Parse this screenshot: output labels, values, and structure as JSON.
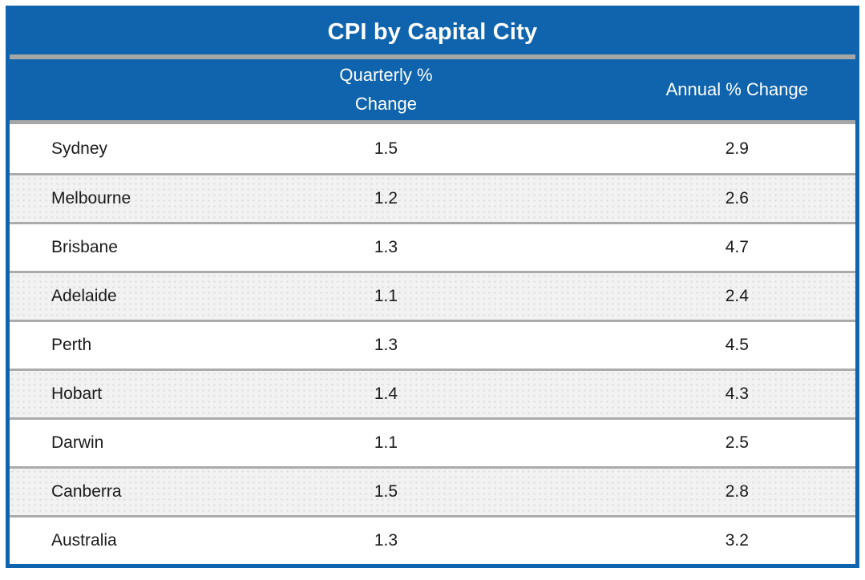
{
  "table": {
    "title": "CPI by Capital City",
    "headers": {
      "city": "",
      "quarterly": "Quarterly % Change",
      "annual": "Annual % Change"
    },
    "rows": [
      {
        "city": "Sydney",
        "quarterly": "1.5",
        "annual": "2.9"
      },
      {
        "city": "Melbourne",
        "quarterly": "1.2",
        "annual": "2.6"
      },
      {
        "city": "Brisbane",
        "quarterly": "1.3",
        "annual": "4.7"
      },
      {
        "city": "Adelaide",
        "quarterly": "1.1",
        "annual": "2.4"
      },
      {
        "city": "Perth",
        "quarterly": "1.3",
        "annual": "4.5"
      },
      {
        "city": "Hobart",
        "quarterly": "1.4",
        "annual": "4.3"
      },
      {
        "city": "Darwin",
        "quarterly": "1.1",
        "annual": "2.5"
      },
      {
        "city": "Canberra",
        "quarterly": "1.5",
        "annual": "2.8"
      },
      {
        "city": "Australia",
        "quarterly": "1.3",
        "annual": "3.2"
      }
    ]
  },
  "colors": {
    "header_blue": "#0f64ad",
    "divider_gray": "#a6a6a6",
    "row_separator": "#ababab",
    "row_alternate": "#f2f2f2",
    "text": "#1a1a1a",
    "header_text": "#ffffff"
  },
  "chart_data": {
    "type": "table",
    "title": "CPI by Capital City",
    "columns": [
      "",
      "Quarterly % Change",
      "Annual % Change"
    ],
    "rows": [
      [
        "Sydney",
        1.5,
        2.9
      ],
      [
        "Melbourne",
        1.2,
        2.6
      ],
      [
        "Brisbane",
        1.3,
        4.7
      ],
      [
        "Adelaide",
        1.1,
        2.4
      ],
      [
        "Perth",
        1.3,
        4.5
      ],
      [
        "Hobart",
        1.4,
        4.3
      ],
      [
        "Darwin",
        1.1,
        2.5
      ],
      [
        "Canberra",
        1.5,
        2.8
      ],
      [
        "Australia",
        1.3,
        3.2
      ]
    ]
  }
}
